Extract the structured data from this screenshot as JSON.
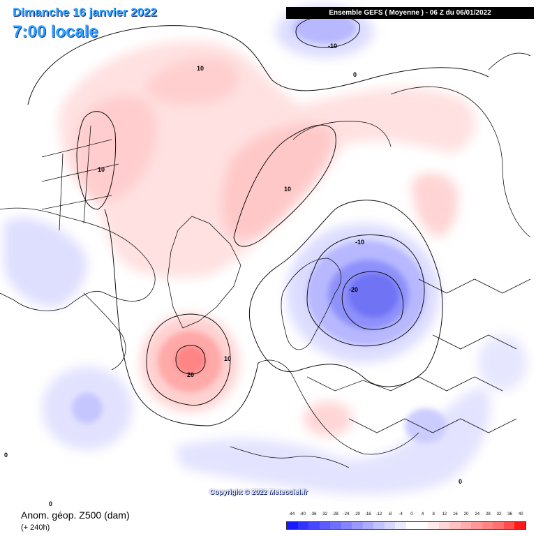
{
  "header": {
    "date": "Dimanche 16 janvier 2022",
    "time": "7:00 locale",
    "run": "Ensemble GEFS ( Moyenne ) - 06 Z du 06/01/2022"
  },
  "footer": {
    "copyright": "Copyright © 2022 Meteociel.fr",
    "field": "Anom. géop. Z500 (dam)",
    "lead": "(+ 240h)",
    "stray_zero": "0"
  },
  "contour_labels": {
    "a": "-10",
    "b": "0",
    "c": "10",
    "d": "10",
    "e": "10",
    "f": "-10",
    "g": "-20",
    "h": "10",
    "i": "20",
    "j": "0",
    "k": "0"
  },
  "legend": {
    "ticks": [
      "-44",
      "-40",
      "-36",
      "-32",
      "-28",
      "-24",
      "-20",
      "-16",
      "-12",
      "-8",
      "-4",
      "0",
      "4",
      "8",
      "12",
      "16",
      "20",
      "24",
      "28",
      "32",
      "36",
      "40"
    ],
    "colors": [
      "#1a1aff",
      "#3333ff",
      "#4747ff",
      "#5c5cff",
      "#7070ff",
      "#8585ff",
      "#9999ff",
      "#adadff",
      "#c2c2ff",
      "#d6d6ff",
      "#ebebff",
      "#ffffff",
      "#ffffff",
      "#ffebeb",
      "#ffd6d6",
      "#ffc2c2",
      "#ffadad",
      "#ff9999",
      "#ff8585",
      "#ff7070",
      "#ff4d4d",
      "#ff1a1a"
    ]
  },
  "colors": {
    "negative": "#6a6cf0",
    "positive": "#ff8a8a"
  }
}
